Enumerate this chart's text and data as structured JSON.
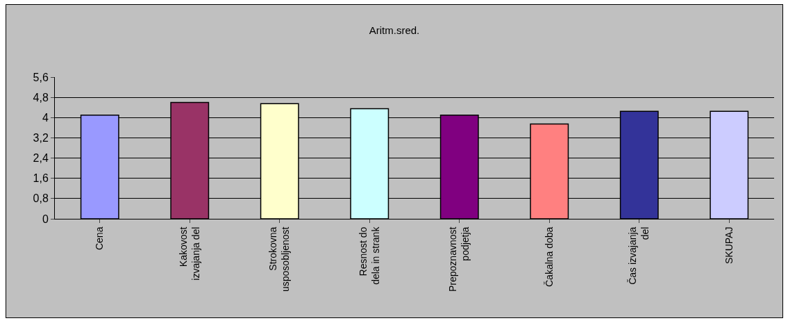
{
  "chart_data": {
    "type": "bar",
    "title": "Aritm.sred.",
    "categories": [
      "Cena",
      "Kakovost izvajanja del",
      "Strokovna usposobljenost",
      "Resnost do dela in strank",
      "Prepoznavnost podjetja",
      "Čakalna doba",
      "Čas izvajanja del",
      "SKUPAJ"
    ],
    "values": [
      4.1,
      4.6,
      4.55,
      4.35,
      4.1,
      3.75,
      4.25,
      4.25
    ],
    "colors": [
      "#9999ff",
      "#993366",
      "#ffffcc",
      "#ccffff",
      "#800080",
      "#ff8080",
      "#333399",
      "#ccccff"
    ],
    "ylim": [
      0,
      5.6
    ],
    "yticks": [
      0,
      {
        "value": 0.8,
        "label": "0,8"
      },
      {
        "value": 1.6,
        "label": "1,6"
      },
      {
        "value": 2.4,
        "label": "2,4"
      },
      {
        "value": 3.2,
        "label": "3,2"
      },
      4,
      {
        "value": 4.8,
        "label": "4,8"
      },
      {
        "value": 5.6,
        "label": "5,6"
      }
    ],
    "grid": "y"
  }
}
